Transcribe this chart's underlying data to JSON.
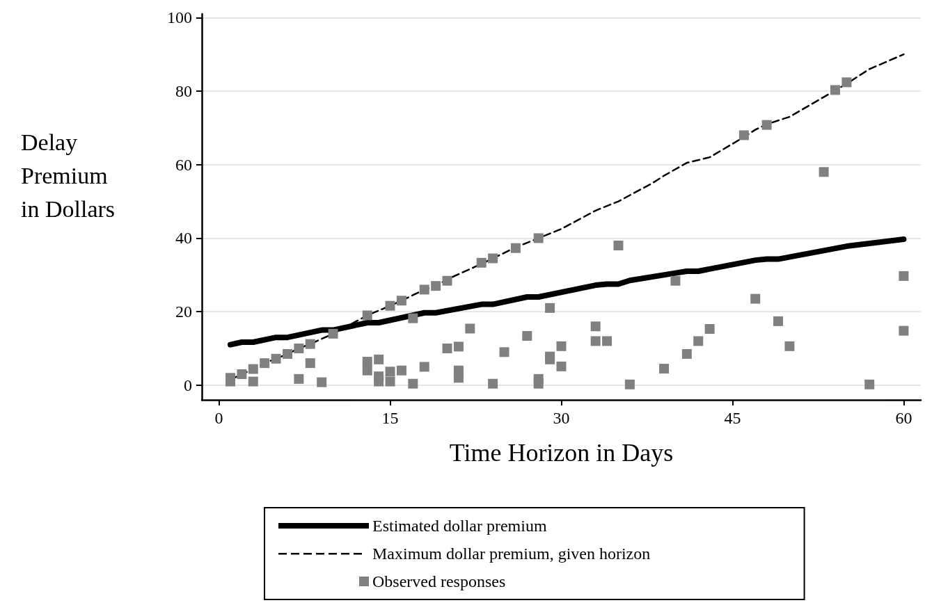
{
  "chart_data": {
    "type": "scatter",
    "xlabel": "Time Horizon in Days",
    "ylabel": "Delay Premium in Dollars",
    "xlim": [
      -1.5,
      61.5
    ],
    "ylim": [
      -4,
      101
    ],
    "xticks": [
      0,
      15,
      30,
      45,
      60
    ],
    "yticks": [
      0,
      20,
      40,
      60,
      80,
      100
    ],
    "grid": "y",
    "legend": "bottom",
    "series": [
      {
        "name": "Estimated dollar premium",
        "type": "line",
        "line_style": "solid",
        "marker": "none",
        "color": "#000000",
        "x": [
          1,
          2,
          3,
          5,
          6,
          9,
          10,
          13,
          14,
          18,
          19,
          23,
          24,
          27,
          28,
          33,
          34,
          35,
          36,
          40,
          41,
          42,
          47,
          48,
          49,
          55,
          56,
          60
        ],
        "values": [
          11,
          11.7,
          11.7,
          13,
          13,
          15,
          15,
          17,
          17,
          19.7,
          19.7,
          22,
          22,
          24,
          24,
          27.2,
          27.5,
          27.5,
          28.5,
          30.5,
          31,
          31,
          34,
          34.3,
          34.3,
          37.8,
          38.2,
          39.7
        ]
      },
      {
        "name": "Maximum dollar premium, given horizon",
        "type": "line",
        "line_style": "dashed",
        "marker": "none",
        "color": "#000000",
        "x": [
          1,
          3,
          4,
          5,
          6,
          7,
          8,
          10,
          13,
          15,
          16,
          18,
          19,
          20,
          23,
          24,
          26,
          28,
          30,
          33,
          35,
          38,
          39,
          41,
          43,
          46,
          47,
          48,
          50,
          55,
          57,
          60
        ],
        "values": [
          1.5,
          4.4,
          6,
          7.2,
          8.5,
          10,
          11.2,
          14,
          19,
          21.6,
          23,
          26,
          27,
          28.8,
          33,
          34.5,
          37.5,
          40,
          42.5,
          47.5,
          50,
          55,
          57,
          60.5,
          62,
          67.5,
          69.5,
          71,
          73,
          82,
          86,
          90
        ]
      },
      {
        "name": "Observed responses",
        "type": "scatter",
        "marker": "square",
        "color": "#808080",
        "x": [
          1,
          1,
          2,
          3,
          3,
          4,
          5,
          6,
          7,
          7,
          8,
          8,
          9,
          10,
          13,
          13,
          13,
          14,
          14,
          14,
          15,
          15,
          15,
          16,
          16,
          17,
          17,
          18,
          18,
          19,
          20,
          20,
          21,
          21,
          21,
          22,
          23,
          24,
          24,
          25,
          26,
          27,
          28,
          28,
          28,
          29,
          29,
          29,
          30,
          30,
          33,
          33,
          34,
          35,
          36,
          39,
          40,
          41,
          42,
          43,
          46,
          47,
          48,
          49,
          50,
          53,
          54,
          55,
          57,
          60,
          60
        ],
        "values": [
          1,
          2,
          3,
          4.4,
          1,
          6,
          7.2,
          8.5,
          10,
          1.7,
          11.2,
          6,
          0.8,
          14,
          19,
          6.4,
          4,
          7,
          2.4,
          1,
          21.6,
          3.7,
          1,
          23,
          4,
          18.2,
          0.4,
          26,
          5,
          27,
          28.4,
          10,
          10.5,
          4,
          2,
          15.4,
          33.3,
          34.5,
          0.4,
          9,
          37.3,
          13.4,
          40,
          1.7,
          0.4,
          21,
          7.8,
          7,
          10.6,
          5.1,
          16,
          12,
          12,
          38,
          0.2,
          4.5,
          28.4,
          8.5,
          12,
          15.3,
          68,
          23.5,
          70.8,
          17.4,
          10.6,
          58,
          80.3,
          82.4,
          0.2,
          14.8,
          29.7
        ]
      }
    ]
  }
}
